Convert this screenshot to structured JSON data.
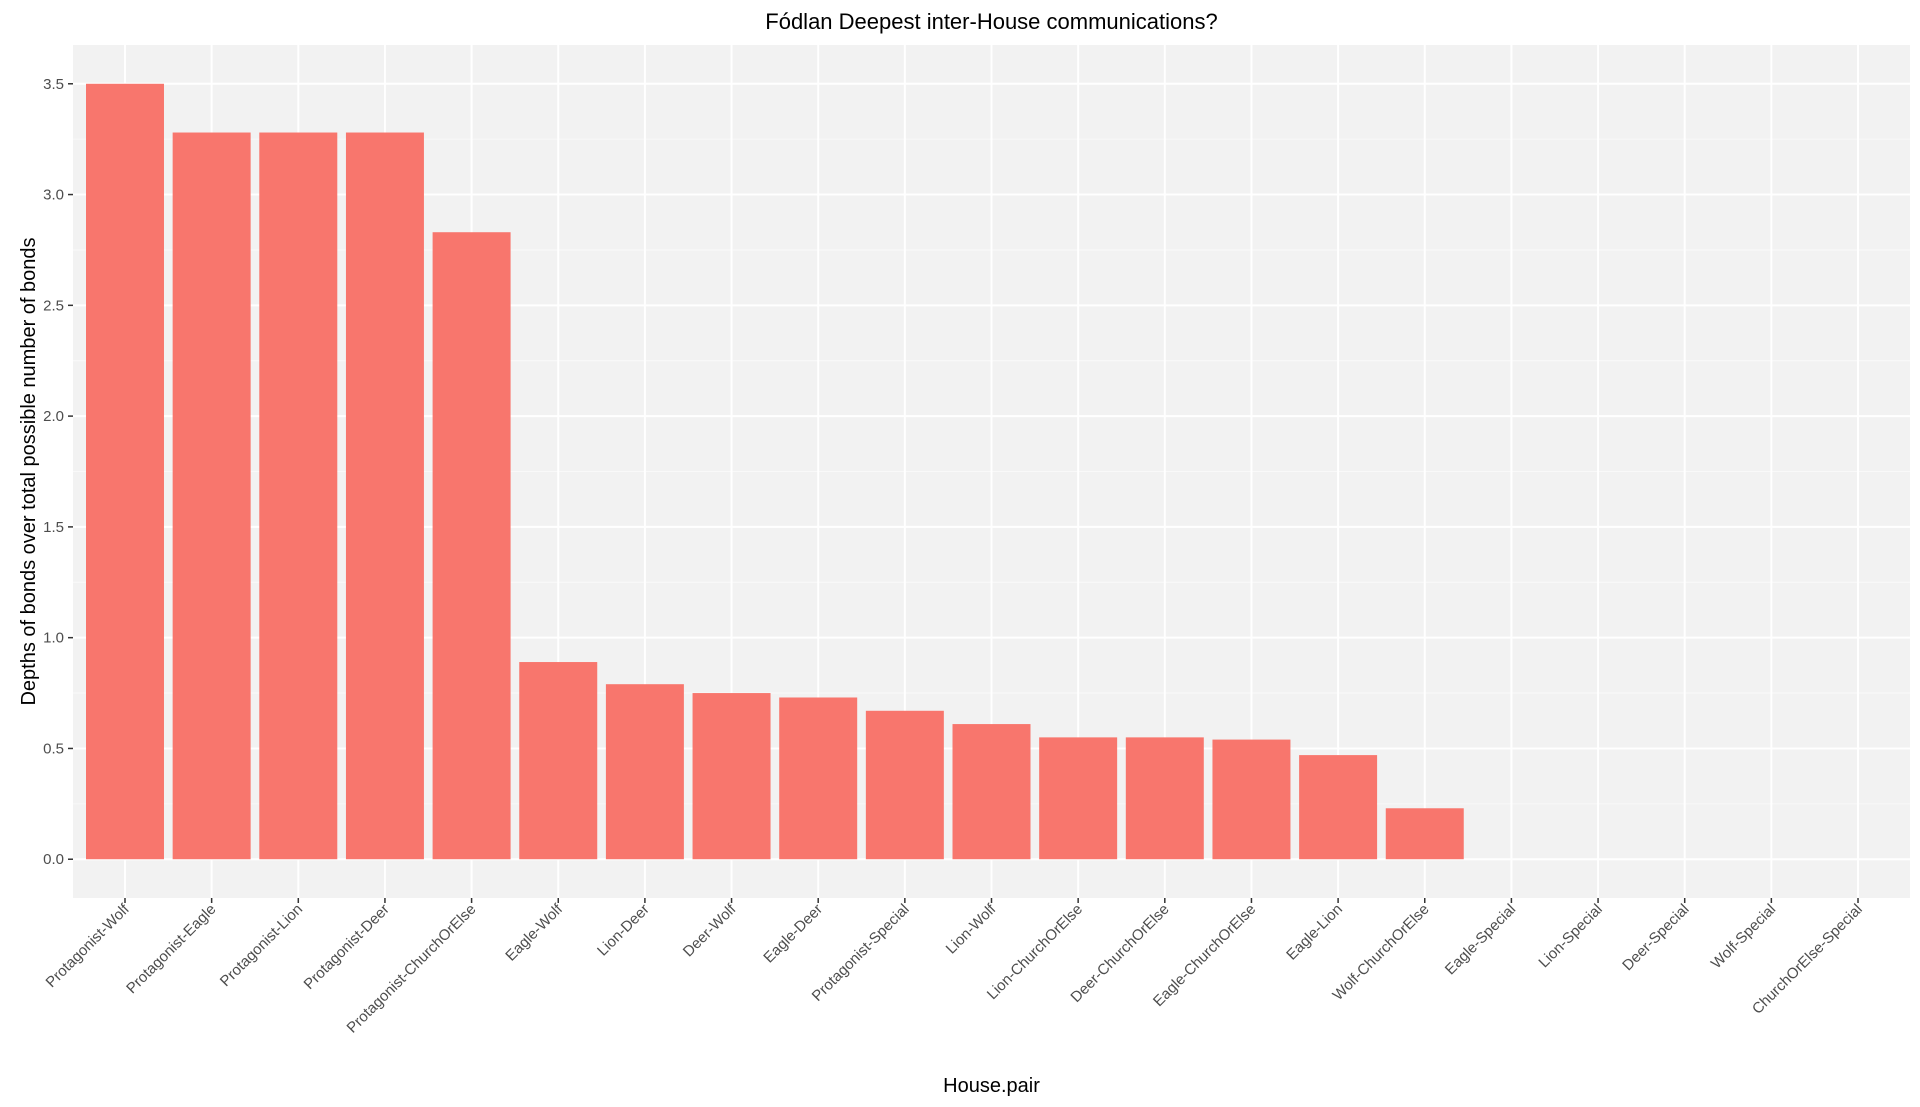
{
  "chart_data": {
    "type": "bar",
    "title": "Fódlan Deepest inter-House communications?",
    "xlabel": "House.pair",
    "ylabel": "Depths of bonds over total possible number of bonds",
    "categories": [
      "Protagonist-Wolf",
      "Protagonist-Eagle",
      "Protagonist-Lion",
      "Protagonist-Deer",
      "Protagonist-ChurchOrElse",
      "Eagle-Wolf",
      "Lion-Deer",
      "Deer-Wolf",
      "Eagle-Deer",
      "Protagonist-Special",
      "Lion-Wolf",
      "Lion-ChurchOrElse",
      "Deer-ChurchOrElse",
      "Eagle-ChurchOrElse",
      "Eagle-Lion",
      "Wolf-ChurchOrElse",
      "Eagle-Special",
      "Lion-Special",
      "Deer-Special",
      "Wolf-Special",
      "ChurchOrElse-Special"
    ],
    "values": [
      3.5,
      3.28,
      3.28,
      3.28,
      2.83,
      0.89,
      0.79,
      0.75,
      0.73,
      0.67,
      0.61,
      0.55,
      0.55,
      0.54,
      0.47,
      0.23,
      0,
      0,
      0,
      0,
      0
    ],
    "yticks": [
      "0.0",
      "0.5",
      "1.0",
      "1.5",
      "2.0",
      "2.5",
      "3.0",
      "3.5"
    ],
    "ylim": [
      -0.175,
      3.675
    ],
    "grid": true,
    "legend": "none",
    "bar_color": "#F8766D",
    "panel_color": "#F2F2F2",
    "grid_major_color": "#FFFFFF",
    "grid_minor_color": "#F9F9F9"
  }
}
